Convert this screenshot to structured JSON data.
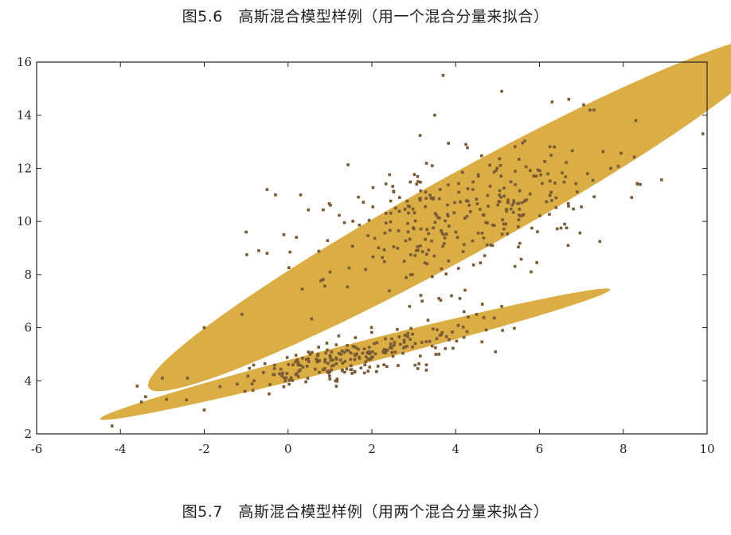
{
  "captions": {
    "top": "图5.6　高斯混合模型样例（用一个混合分量来拟合）",
    "bottom": "图5.7　高斯混合模型样例（用两个混合分量来拟合）"
  },
  "colors": {
    "ellipse_fill": "#dbae45",
    "point": "#7a5a34",
    "axis": "#222222"
  },
  "chart_data": {
    "type": "scatter",
    "title": "",
    "xlabel": "",
    "ylabel": "",
    "xlim": [
      -6,
      10
    ],
    "ylim": [
      2,
      16
    ],
    "grid": false,
    "box": true,
    "x_ticks": [
      -6,
      -4,
      -2,
      0,
      2,
      4,
      6,
      8,
      10
    ],
    "x_tick_labels": [
      "-6",
      "-4",
      "-2",
      "0",
      "2",
      "4",
      "6",
      "8",
      "10"
    ],
    "y_ticks": [
      2,
      4,
      6,
      8,
      10,
      12,
      14,
      16
    ],
    "y_tick_labels": [
      "2",
      "4",
      "6",
      "8",
      "10",
      "12",
      "14",
      "16"
    ],
    "components": [
      {
        "center": [
          4.2,
          10.3
        ],
        "semi_major": 7.6,
        "semi_minor": 2.9,
        "angle_deg": 8
      },
      {
        "center": [
          1.6,
          5.0
        ],
        "semi_major": 6.1,
        "semi_minor": 0.8,
        "angle_deg": 3.7
      }
    ],
    "cluster_generators": [
      {
        "n": 300,
        "center": [
          4.2,
          10.4
        ],
        "sd_major": 1.9,
        "sd_minor": 1.1,
        "angle_deg": 28,
        "seed": 11
      },
      {
        "n": 230,
        "center": [
          1.3,
          4.8
        ],
        "sd_major": 1.5,
        "sd_minor": 0.35,
        "angle_deg": 19,
        "seed": 29
      }
    ],
    "outliers": [
      [
        -4.2,
        2.3
      ],
      [
        -3.6,
        3.8
      ],
      [
        -3.5,
        3.2
      ],
      [
        -3.4,
        3.4
      ],
      [
        -3.0,
        4.1
      ],
      [
        -2.9,
        3.3
      ],
      [
        -2.4,
        4.1
      ],
      [
        -2.0,
        6.0
      ],
      [
        -2.0,
        2.9
      ],
      [
        -1.1,
        6.5
      ],
      [
        -1.0,
        9.6
      ],
      [
        -0.7,
        8.9
      ],
      [
        -0.5,
        11.2
      ],
      [
        -0.5,
        8.8
      ],
      [
        -0.3,
        11.0
      ],
      [
        0.3,
        11.0
      ],
      [
        0.2,
        9.4
      ],
      [
        -0.1,
        9.5
      ],
      [
        2.9,
        6.8
      ],
      [
        3.2,
        7.0
      ],
      [
        3.6,
        7.1
      ],
      [
        3.9,
        7.2
      ],
      [
        4.1,
        7.1
      ],
      [
        4.2,
        6.6
      ],
      [
        4.3,
        6.4
      ],
      [
        4.5,
        6.5
      ],
      [
        5.1,
        6.8
      ],
      [
        3.7,
        15.5
      ],
      [
        3.5,
        14.0
      ],
      [
        5.1,
        14.9
      ],
      [
        6.3,
        14.5
      ],
      [
        6.7,
        14.6
      ],
      [
        7.3,
        14.2
      ],
      [
        8.3,
        13.8
      ],
      [
        9.9,
        13.3
      ],
      [
        7.7,
        12.0
      ],
      [
        8.2,
        10.9
      ],
      [
        6.6,
        9.9
      ],
      [
        5.8,
        8.1
      ],
      [
        3.3,
        4.6
      ],
      [
        3.6,
        5.0
      ],
      [
        3.3,
        4.4
      ]
    ]
  }
}
